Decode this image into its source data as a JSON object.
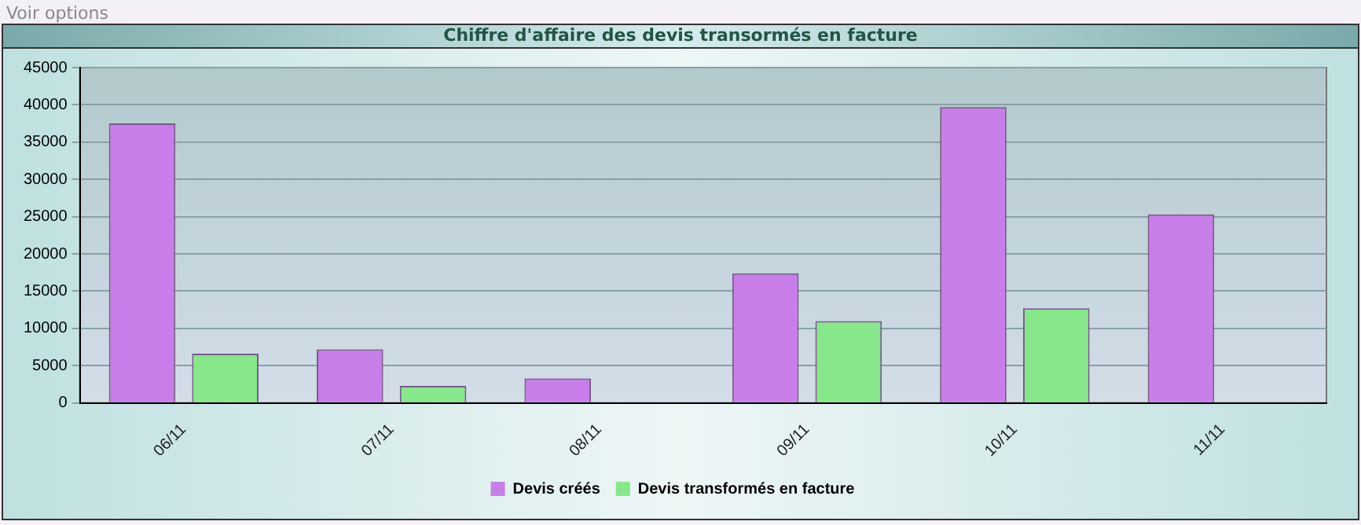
{
  "chart_data": {
    "type": "bar",
    "title": "Chiffre d'affaire des devis transormés en facture",
    "annotations": [
      "Voir options"
    ],
    "categories": [
      "06/11",
      "07/11",
      "08/11",
      "09/11",
      "10/11",
      "11/11"
    ],
    "series": [
      {
        "name": "Devis créés",
        "color": "#c77ee8",
        "values": [
          37500,
          7200,
          3300,
          17400,
          39700,
          25300
        ]
      },
      {
        "name": "Devis transformés en facture",
        "color": "#86e88a",
        "values": [
          6600,
          2300,
          null,
          11000,
          12700,
          null
        ]
      }
    ],
    "ylim": [
      0,
      45000
    ],
    "yticks": [
      0,
      5000,
      10000,
      15000,
      20000,
      25000,
      30000,
      35000,
      40000,
      45000
    ],
    "grid": "y",
    "legend": "bottom"
  }
}
